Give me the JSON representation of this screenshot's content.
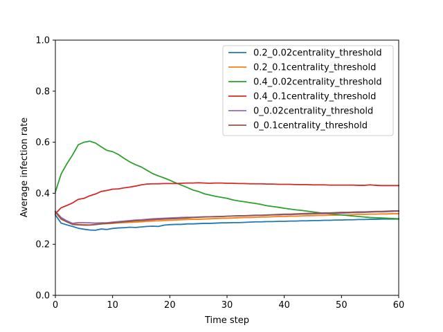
{
  "chart_data": {
    "type": "line",
    "title": "",
    "xlabel": "Time step",
    "ylabel": "Average infection rate",
    "xlim": [
      0,
      60
    ],
    "ylim": [
      0.0,
      1.0
    ],
    "x_ticks": [
      0,
      10,
      20,
      30,
      40,
      50,
      60
    ],
    "x_tick_labels": [
      "0",
      "10",
      "20",
      "30",
      "40",
      "50",
      "60"
    ],
    "y_ticks": [
      0.0,
      0.2,
      0.4,
      0.6,
      0.8,
      1.0
    ],
    "y_tick_labels": [
      "0.0",
      "0.2",
      "0.4",
      "0.6",
      "0.8",
      "1.0"
    ],
    "grid": false,
    "legend_position": "top-right",
    "x": [
      0,
      1,
      2,
      3,
      4,
      5,
      6,
      7,
      8,
      9,
      10,
      11,
      12,
      13,
      14,
      15,
      16,
      17,
      18,
      19,
      20,
      21,
      22,
      23,
      24,
      25,
      26,
      27,
      28,
      29,
      30,
      31,
      32,
      33,
      34,
      35,
      36,
      37,
      38,
      39,
      40,
      41,
      42,
      43,
      44,
      45,
      46,
      47,
      48,
      49,
      50,
      51,
      52,
      53,
      54,
      55,
      56,
      57,
      58,
      59,
      60
    ],
    "series": [
      {
        "name": "0.2_0.02centrality_threshold",
        "color": "#1f77b4",
        "values": [
          0.315,
          0.283,
          0.276,
          0.27,
          0.263,
          0.259,
          0.256,
          0.255,
          0.26,
          0.258,
          0.262,
          0.264,
          0.265,
          0.267,
          0.266,
          0.268,
          0.27,
          0.271,
          0.27,
          0.275,
          0.277,
          0.278,
          0.278,
          0.28,
          0.28,
          0.281,
          0.282,
          0.282,
          0.283,
          0.284,
          0.284,
          0.285,
          0.285,
          0.286,
          0.287,
          0.288,
          0.288,
          0.289,
          0.289,
          0.29,
          0.29,
          0.291,
          0.291,
          0.292,
          0.292,
          0.293,
          0.293,
          0.294,
          0.294,
          0.295,
          0.295,
          0.296,
          0.296,
          0.297,
          0.297,
          0.298,
          0.298,
          0.299,
          0.299,
          0.299,
          0.299
        ]
      },
      {
        "name": "0.2_0.1centrality_threshold",
        "color": "#ff7f0e",
        "values": [
          0.325,
          0.298,
          0.288,
          0.28,
          0.278,
          0.277,
          0.276,
          0.278,
          0.28,
          0.281,
          0.282,
          0.284,
          0.285,
          0.286,
          0.287,
          0.288,
          0.29,
          0.291,
          0.292,
          0.293,
          0.294,
          0.295,
          0.296,
          0.297,
          0.298,
          0.298,
          0.299,
          0.3,
          0.301,
          0.302,
          0.302,
          0.303,
          0.304,
          0.305,
          0.305,
          0.306,
          0.307,
          0.307,
          0.308,
          0.309,
          0.309,
          0.31,
          0.31,
          0.311,
          0.312,
          0.312,
          0.313,
          0.313,
          0.314,
          0.314,
          0.315,
          0.315,
          0.316,
          0.317,
          0.317,
          0.318,
          0.318,
          0.319,
          0.319,
          0.32,
          0.32
        ]
      },
      {
        "name": "0.4_0.02centrality_threshold",
        "color": "#2ca02c",
        "values": [
          0.405,
          0.475,
          0.515,
          0.55,
          0.59,
          0.6,
          0.604,
          0.597,
          0.582,
          0.568,
          0.563,
          0.552,
          0.537,
          0.523,
          0.512,
          0.503,
          0.49,
          0.477,
          0.468,
          0.46,
          0.451,
          0.441,
          0.432,
          0.423,
          0.413,
          0.407,
          0.398,
          0.393,
          0.388,
          0.384,
          0.38,
          0.374,
          0.37,
          0.367,
          0.363,
          0.36,
          0.356,
          0.351,
          0.348,
          0.345,
          0.341,
          0.338,
          0.335,
          0.333,
          0.33,
          0.327,
          0.324,
          0.321,
          0.319,
          0.317,
          0.315,
          0.313,
          0.311,
          0.309,
          0.307,
          0.305,
          0.304,
          0.303,
          0.302,
          0.301,
          0.3
        ]
      },
      {
        "name": "0.4_0.1centrality_threshold",
        "color": "#d62728",
        "values": [
          0.32,
          0.343,
          0.352,
          0.362,
          0.376,
          0.38,
          0.39,
          0.397,
          0.407,
          0.411,
          0.416,
          0.417,
          0.421,
          0.424,
          0.428,
          0.433,
          0.436,
          0.437,
          0.437,
          0.438,
          0.438,
          0.438,
          0.439,
          0.44,
          0.44,
          0.441,
          0.44,
          0.439,
          0.44,
          0.44,
          0.439,
          0.439,
          0.438,
          0.438,
          0.437,
          0.437,
          0.437,
          0.436,
          0.436,
          0.435,
          0.435,
          0.435,
          0.434,
          0.434,
          0.434,
          0.433,
          0.433,
          0.433,
          0.432,
          0.432,
          0.432,
          0.432,
          0.432,
          0.431,
          0.431,
          0.433,
          0.431,
          0.43,
          0.43,
          0.43,
          0.43
        ]
      },
      {
        "name": "0_0.02centrality_threshold",
        "color": "#9467bd",
        "values": [
          0.33,
          0.305,
          0.292,
          0.282,
          0.285,
          0.285,
          0.284,
          0.283,
          0.284,
          0.284,
          0.287,
          0.289,
          0.291,
          0.293,
          0.295,
          0.296,
          0.298,
          0.3,
          0.301,
          0.302,
          0.303,
          0.304,
          0.305,
          0.306,
          0.306,
          0.307,
          0.308,
          0.308,
          0.309,
          0.309,
          0.31,
          0.311,
          0.311,
          0.312,
          0.312,
          0.313,
          0.313,
          0.314,
          0.315,
          0.315,
          0.316,
          0.316,
          0.317,
          0.318,
          0.318,
          0.319,
          0.32,
          0.32,
          0.321,
          0.322,
          0.322,
          0.323,
          0.324,
          0.324,
          0.325,
          0.326,
          0.327,
          0.327,
          0.328,
          0.329,
          0.33
        ]
      },
      {
        "name": "0_0.1centrality_threshold",
        "color": "#8c564b",
        "values": [
          0.328,
          0.3,
          0.288,
          0.278,
          0.276,
          0.275,
          0.275,
          0.277,
          0.28,
          0.282,
          0.284,
          0.286,
          0.288,
          0.29,
          0.292,
          0.293,
          0.295,
          0.296,
          0.298,
          0.299,
          0.3,
          0.301,
          0.302,
          0.303,
          0.305,
          0.306,
          0.307,
          0.308,
          0.308,
          0.309,
          0.31,
          0.311,
          0.312,
          0.312,
          0.313,
          0.314,
          0.314,
          0.315,
          0.316,
          0.317,
          0.318,
          0.318,
          0.319,
          0.32,
          0.321,
          0.321,
          0.322,
          0.323,
          0.323,
          0.324,
          0.325,
          0.325,
          0.326,
          0.327,
          0.327,
          0.328,
          0.329,
          0.329,
          0.33,
          0.331,
          0.331
        ]
      }
    ]
  }
}
